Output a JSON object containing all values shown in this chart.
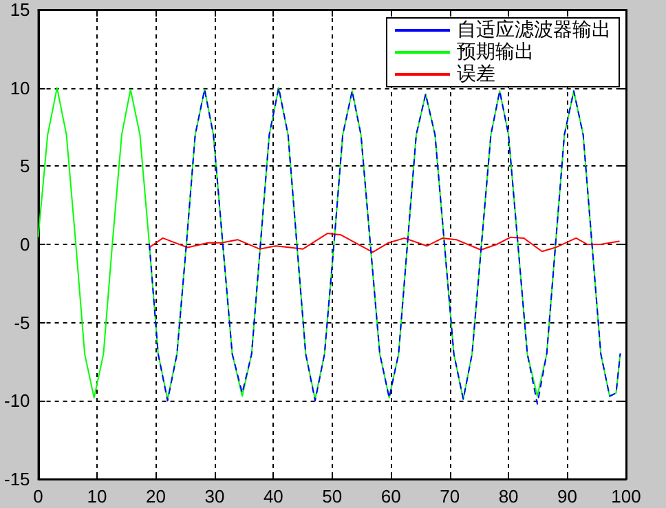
{
  "chart_data": {
    "type": "line",
    "xlim": [
      0,
      100
    ],
    "xticks": [
      0,
      10,
      20,
      30,
      40,
      50,
      60,
      70,
      80,
      90,
      100
    ],
    "ylim": [
      -15,
      15
    ],
    "yticks": [
      -15,
      -10,
      -5,
      0,
      5,
      10,
      15
    ],
    "grid": true,
    "legend": "top right",
    "marker": "none",
    "line_style": "solid",
    "series": [
      {
        "name": "自适应滤波器输出",
        "color": "#0000ff",
        "line_style": "dashed",
        "x": [
          18.9,
          20.4,
          22,
          23.6,
          25.2,
          26.7,
          28.3,
          29.8,
          31.4,
          33,
          34.7,
          36.3,
          37.8,
          39.3,
          40.9,
          42.5,
          44,
          45.5,
          47.1,
          48.7,
          50.3,
          51.8,
          53.4,
          54.9,
          56.5,
          58.1,
          59.7,
          61.3,
          62.8,
          64.3,
          65.9,
          67.5,
          69.1,
          70.7,
          72.3,
          73.8,
          75.4,
          77,
          78.5,
          80,
          81.6,
          83.2,
          84.9,
          86.5,
          88,
          89.5,
          91.1,
          92.7,
          94.2,
          95.7,
          97.2,
          98.3,
          99
        ],
        "values": [
          0,
          -7,
          -10,
          -7,
          0,
          7,
          9.9,
          7,
          0,
          -7,
          -9.5,
          -7,
          0,
          7,
          10,
          7,
          0,
          -7,
          -10,
          -7,
          0,
          7,
          9.8,
          7,
          0,
          -7,
          -9.8,
          -7,
          0,
          7,
          9.6,
          7,
          0,
          -7,
          -9.9,
          -7,
          0,
          7,
          9.8,
          7,
          0,
          -7,
          -10.2,
          -7,
          0,
          7,
          9.8,
          7,
          0,
          -7,
          -9.7,
          -9.5,
          -7
        ]
      },
      {
        "name": "预期输出",
        "color": "#00ff00",
        "x": [
          0,
          1.6,
          3.2,
          4.8,
          6.4,
          7.9,
          9.5,
          11.1,
          12.6,
          14.2,
          15.7,
          17.3,
          18.9,
          20.4,
          22,
          23.6,
          25.2,
          26.7,
          28.3,
          29.8,
          31.4,
          33,
          34.7,
          36.3,
          37.8,
          39.3,
          40.9,
          42.5,
          44,
          45.5,
          47.1,
          48.7,
          50.3,
          51.8,
          53.4,
          54.9,
          56.5,
          58.1,
          59.7,
          61.3,
          62.8,
          64.3,
          65.9,
          67.5,
          69.1,
          70.7,
          72.3,
          73.8,
          75.4,
          77,
          78.5,
          80,
          81.6,
          83.2,
          84.9,
          86.5,
          88,
          89.5,
          91.1,
          92.7,
          94.2,
          95.7,
          97.2,
          98.3,
          99
        ],
        "values": [
          0.5,
          7,
          10,
          7,
          0,
          -7,
          -9.8,
          -7,
          0,
          7,
          9.9,
          7,
          0,
          -7,
          -9.9,
          -7,
          0,
          7,
          9.9,
          7,
          0,
          -7,
          -9.7,
          -7,
          0,
          7,
          10,
          7,
          0,
          -7,
          -9.9,
          -7,
          0,
          7,
          9.8,
          7,
          0,
          -7,
          -9.8,
          -7,
          0,
          7,
          9.6,
          7,
          0,
          -7,
          -9.9,
          -7,
          0,
          7,
          9.8,
          7,
          0,
          -7,
          -9.7,
          -7,
          0,
          7,
          9.8,
          7,
          0,
          -7,
          -9.7,
          -9.5,
          -7
        ]
      },
      {
        "name": "误差",
        "color": "#ff0000",
        "x": [
          18.9,
          21.2,
          25.4,
          28.9,
          31.2,
          33.9,
          37.7,
          40.4,
          42.8,
          45,
          49.2,
          51.5,
          56.9,
          59.6,
          62.3,
          66.1,
          68.8,
          71.1,
          75.3,
          78,
          80.3,
          82.6,
          85.7,
          88,
          91.5,
          93.4,
          95.7,
          98.8
        ],
        "values": [
          -0.2,
          0.4,
          -0.2,
          0.1,
          0.1,
          0.3,
          -0.3,
          -0.1,
          -0.2,
          -0.3,
          0.7,
          0.6,
          -0.5,
          0.1,
          0.4,
          -0.1,
          0.4,
          0.3,
          -0.35,
          0,
          0.45,
          0.4,
          -0.45,
          -0.2,
          0.4,
          0,
          0,
          0.2
        ]
      }
    ]
  }
}
